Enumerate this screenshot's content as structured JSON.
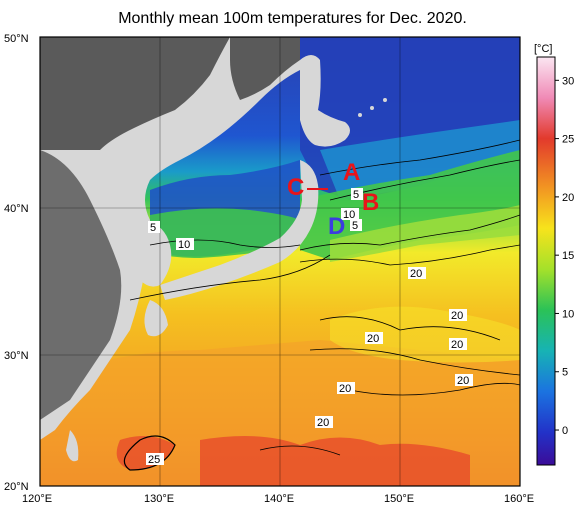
{
  "title": "Monthly mean 100m temperatures for Dec. 2020.",
  "colorbar": {
    "unit": "[°C]",
    "ticks": [
      "30",
      "25",
      "20",
      "15",
      "10",
      "5",
      "0"
    ],
    "tick_values": [
      30,
      25,
      20,
      15,
      10,
      5,
      0
    ],
    "range": [
      -3,
      32
    ],
    "colors": [
      "#3a0d9a",
      "#2233cc",
      "#1b66e0",
      "#12a0d8",
      "#18c0b0",
      "#2bc06a",
      "#6fd32a",
      "#b8e628",
      "#f4ec1e",
      "#f7c21a",
      "#f29722",
      "#ec6a2a",
      "#e03a2a",
      "#f07aa0",
      "#f7c0de"
    ]
  },
  "axes": {
    "x_labels": [
      "120°E",
      "130°E",
      "140°E",
      "150°E",
      "160°E"
    ],
    "y_labels": [
      "50°N",
      "40°N",
      "30°N",
      "20°N"
    ]
  },
  "contour_labels": [
    "5",
    "10",
    "5",
    "10",
    "5",
    "20",
    "20",
    "20",
    "20",
    "20",
    "20",
    "20",
    "25"
  ],
  "point_markers": [
    {
      "label": "A",
      "color": "#e8141a"
    },
    {
      "label": "B",
      "color": "#e8141a"
    },
    {
      "label": "C",
      "color": "#e8141a"
    },
    {
      "label": "D",
      "color": "#3c3ce0"
    }
  ],
  "colors": {
    "land": "#d7d7d7",
    "outside": "#5a5a5a",
    "frame": "#000000"
  }
}
